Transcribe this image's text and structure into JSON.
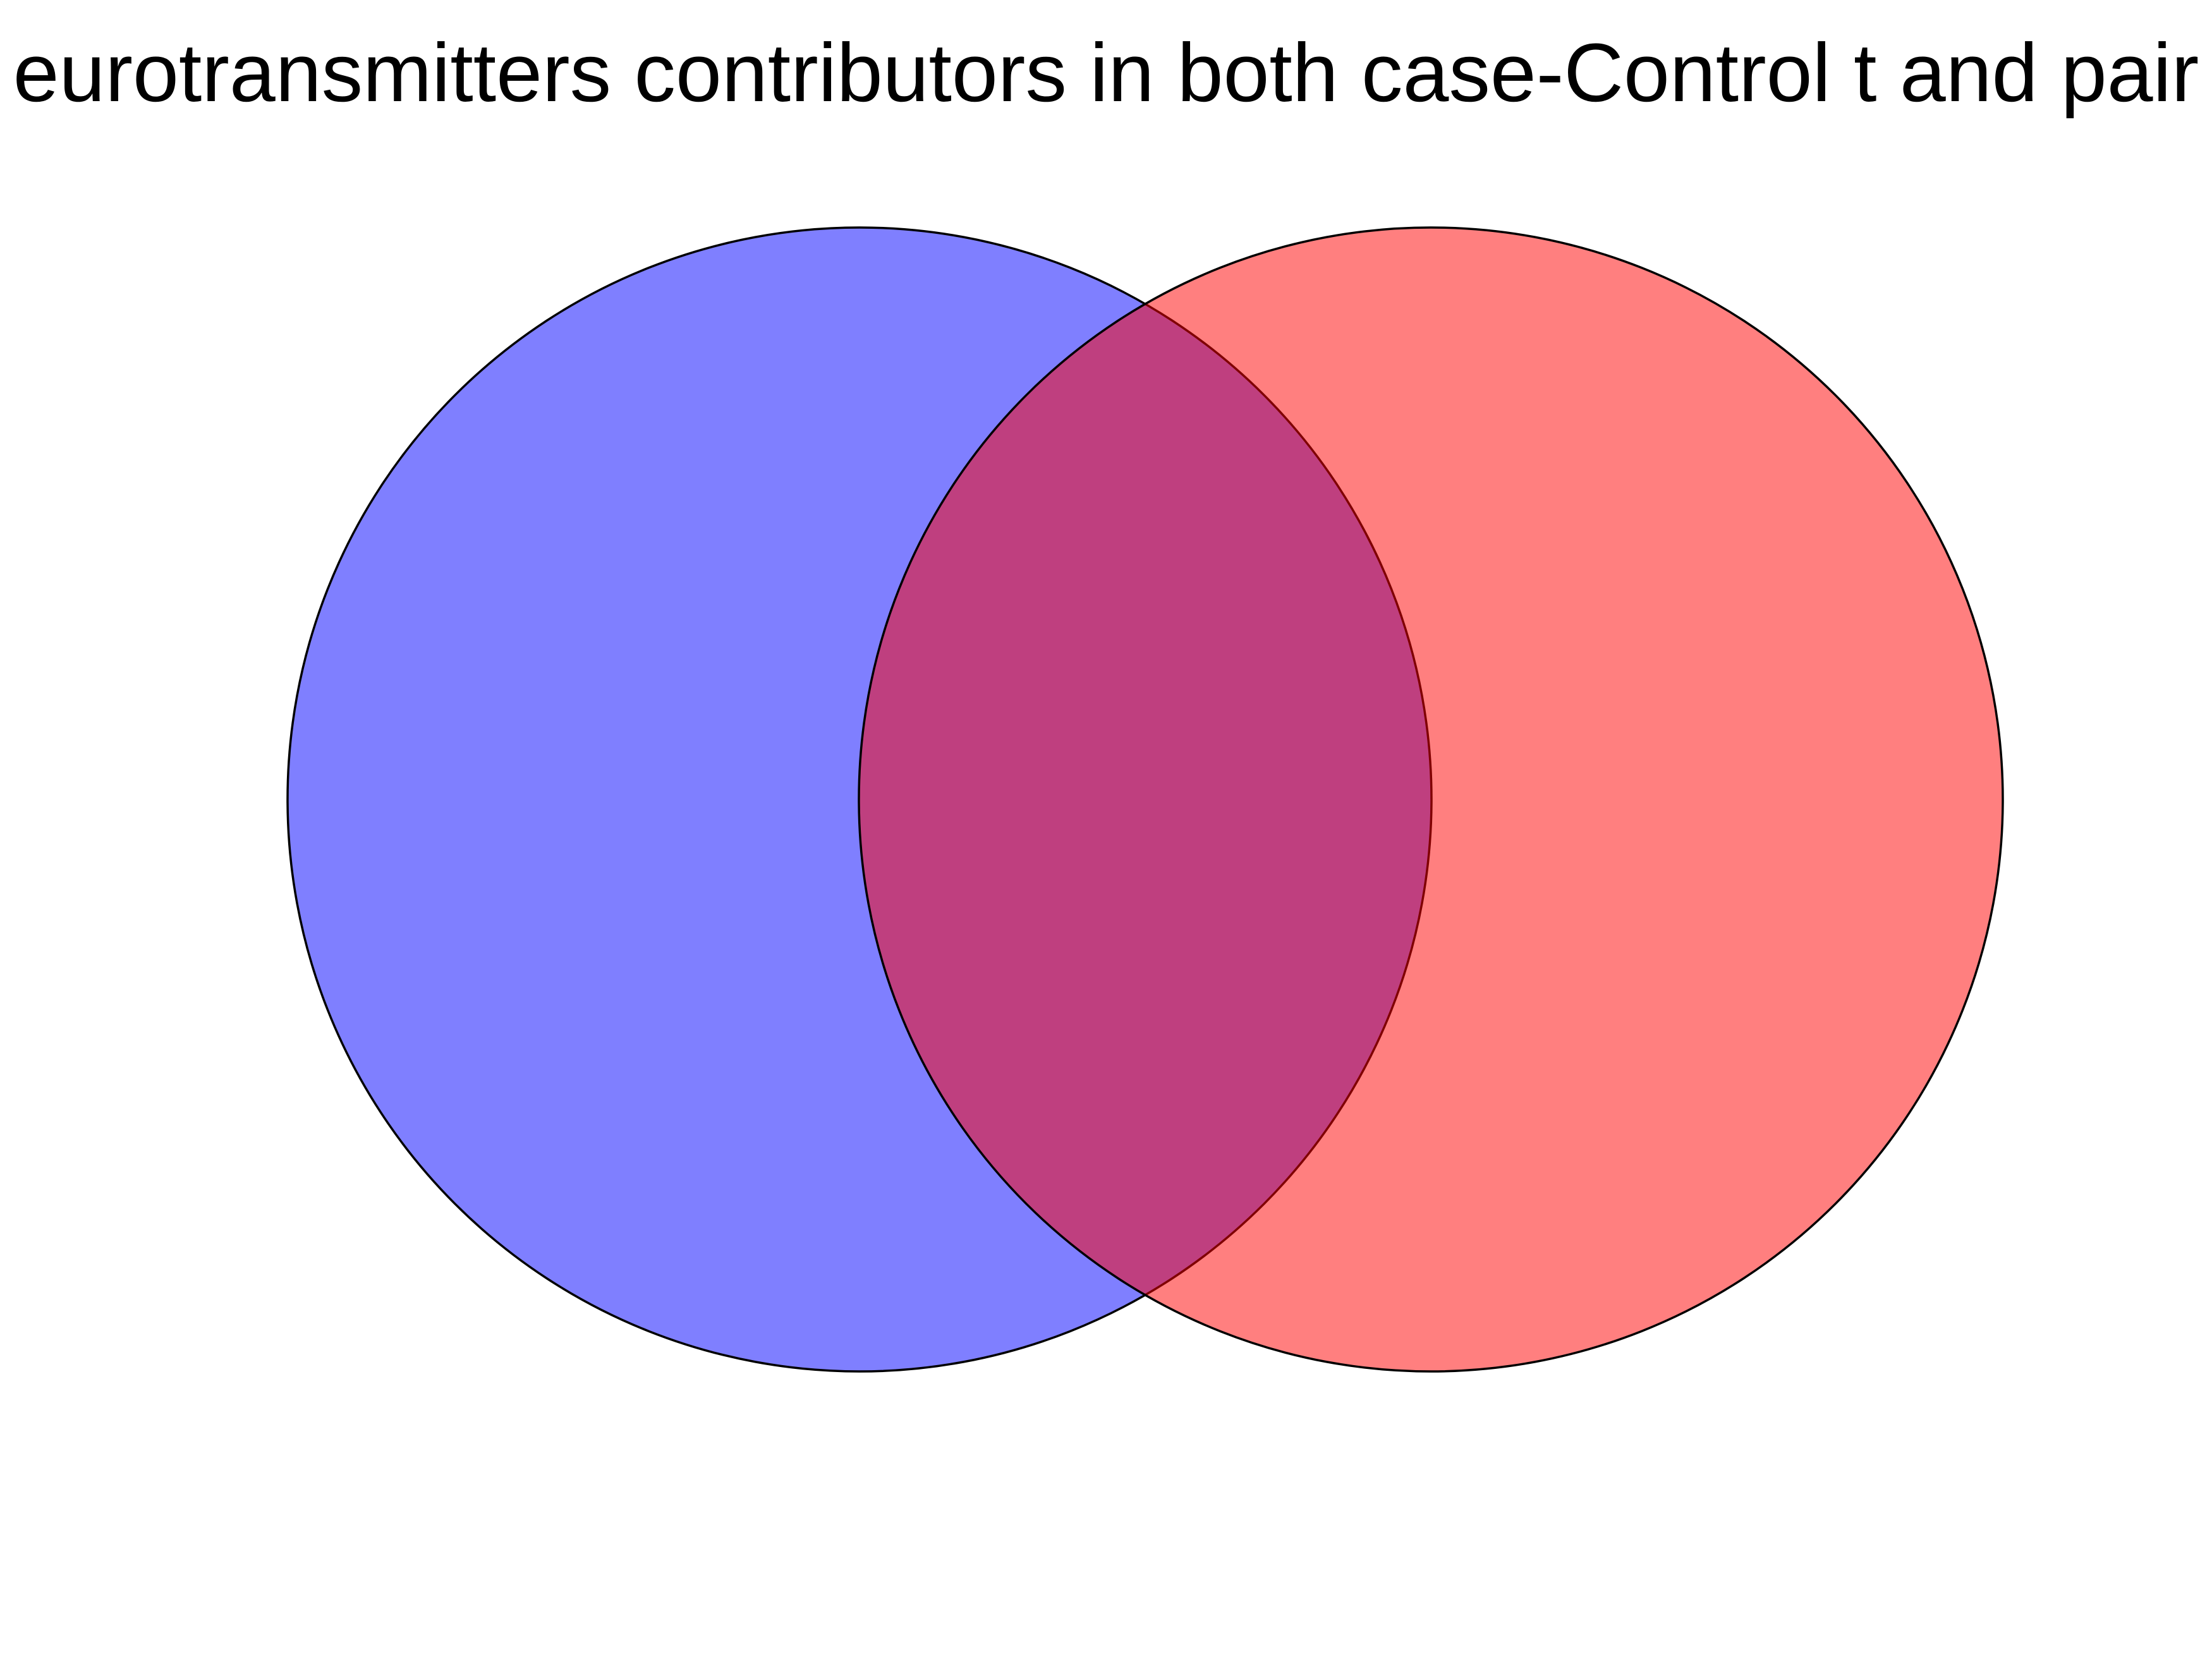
{
  "title": "eurotransmitters contributors in both case-Control t and pair",
  "sets": [
    {
      "id": "left",
      "color": "#0000ff",
      "opacity": 0.5
    },
    {
      "id": "right",
      "color": "#ff0000",
      "opacity": 0.5
    }
  ],
  "overlap_color": "#bf3f7f",
  "background": "#ffffff"
}
